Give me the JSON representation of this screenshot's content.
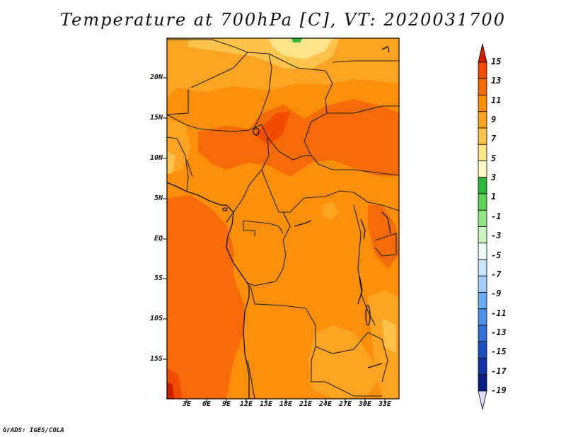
{
  "title": "Temperature at 700hPa [C], VT: 2020031700",
  "credit": "GrADS: IGES/COLA",
  "map": {
    "type": "filled-contour map",
    "region": "Central Africa",
    "variable": "Temperature at 700hPa",
    "units": "C",
    "valid_time": "2020031700",
    "lon_range": [
      0,
      35
    ],
    "lat_range": [
      -20,
      24
    ],
    "lat_ticks": [
      "20N",
      "15N",
      "10N",
      "5N",
      "EQ",
      "5S",
      "10S",
      "15S"
    ],
    "lon_ticks": [
      "3E",
      "6E",
      "9E",
      "12E",
      "15E",
      "18E",
      "21E",
      "24E",
      "27E",
      "30E",
      "33E"
    ]
  },
  "colorbar": {
    "labels": [
      "15",
      "13",
      "11",
      "9",
      "7",
      "5",
      "3",
      "1",
      "-1",
      "-3",
      "-5",
      "-7",
      "-9",
      "-11",
      "-13",
      "-15",
      "-17",
      "-19"
    ],
    "colors": [
      "#cc1f00",
      "#f24c00",
      "#f56b07",
      "#fb8f0c",
      "#fba322",
      "#fec34c",
      "#fde48a",
      "#fffbc0",
      "#30b63a",
      "#5fd35a",
      "#8fe584",
      "#c8f5c0",
      "#eefcf6",
      "#c8e4fb",
      "#a1cdf8",
      "#6cacf3",
      "#4e8fe9",
      "#3570d6",
      "#1f4fbf",
      "#1236a3",
      "#0c1f82",
      "#dedcff"
    ]
  }
}
